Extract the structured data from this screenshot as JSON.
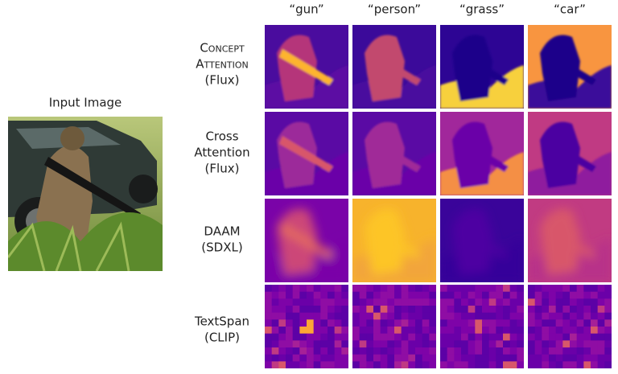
{
  "input_label": "Input Image",
  "columns": [
    "“gun”",
    "“person”",
    "“grass”",
    "“car”"
  ],
  "rows": [
    {
      "lines": [
        "Concept",
        "Attention",
        "(Flux)"
      ]
    },
    {
      "lines": [
        "Cross",
        "Attention",
        "(Flux)"
      ]
    },
    {
      "lines": [
        "DAAM",
        "(SDXL)"
      ]
    },
    {
      "lines": [
        "TextSpan",
        "(CLIP)"
      ]
    }
  ]
}
